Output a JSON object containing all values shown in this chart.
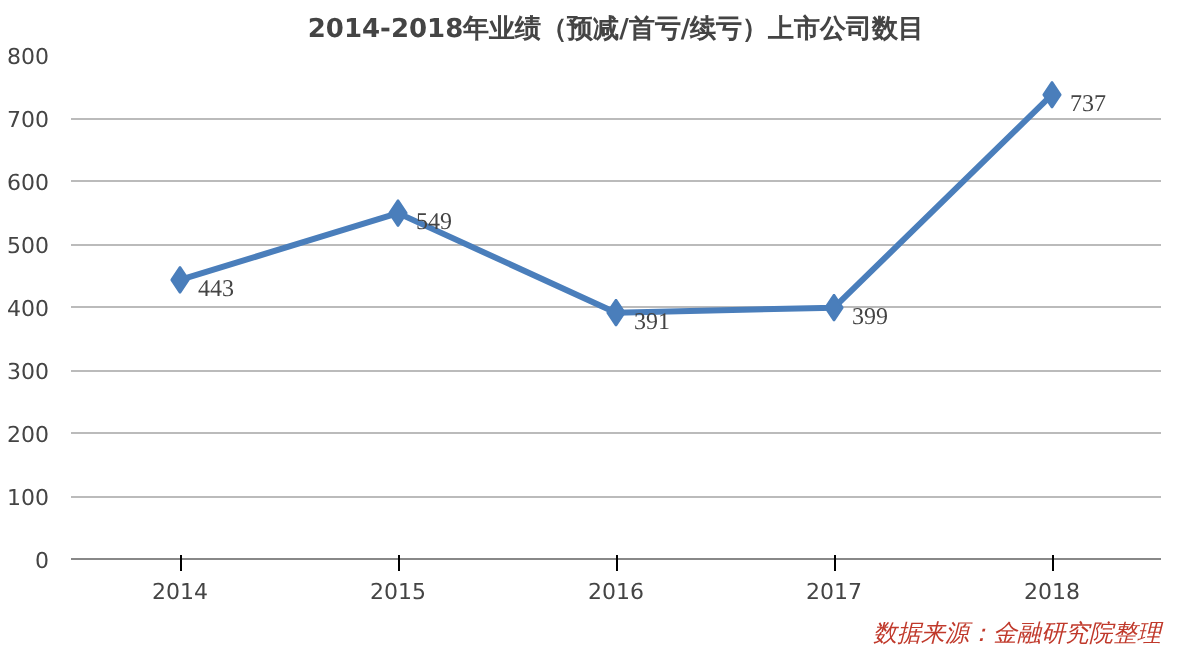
{
  "chart_data": {
    "type": "line",
    "title": "2014-2018年业绩（预减/首亏/续亏）上市公司数目",
    "categories": [
      "2014",
      "2015",
      "2016",
      "2017",
      "2018"
    ],
    "series": [
      {
        "color": "#4a7ebb",
        "values": [
          443,
          549,
          391,
          399,
          737
        ]
      }
    ],
    "ylim": [
      0,
      800
    ],
    "yticks": [
      0,
      100,
      200,
      300,
      400,
      500,
      600,
      700,
      800
    ],
    "grid": "y",
    "marker": "diamond",
    "line_style": "solid",
    "data_labels": true,
    "annotations": [
      "数据来源：金融研究院整理"
    ]
  }
}
